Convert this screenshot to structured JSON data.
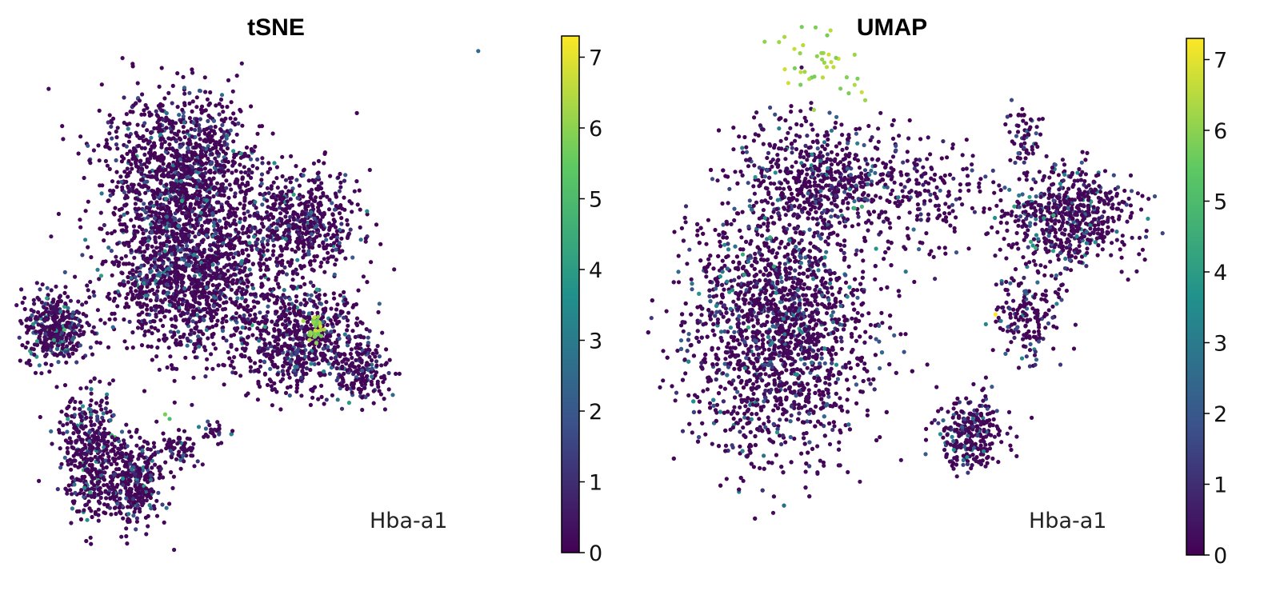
{
  "colormap": {
    "name": "viridis",
    "stops": [
      "#440154",
      "#3b528b",
      "#21918c",
      "#5ec962",
      "#fde725"
    ]
  },
  "chart_data": [
    {
      "type": "scatter",
      "title": "tSNE",
      "annotation": "Hba-a1",
      "color_variable": "Hba-a1",
      "colorbar": {
        "min": 0,
        "max": 7.3,
        "ticks": [
          0,
          1,
          2,
          3,
          4,
          5,
          6,
          7
        ],
        "cmap": "viridis"
      },
      "xlim": [
        0,
        100
      ],
      "ylim": [
        0,
        100
      ],
      "axes_visible": false,
      "grid": false,
      "clusters": [
        {
          "cx": 38,
          "cy": 76,
          "sx": 12,
          "sy": 11,
          "n": 1300,
          "expr_mean": 0.25
        },
        {
          "cx": 40,
          "cy": 55,
          "sx": 13,
          "sy": 10,
          "n": 1300,
          "expr_mean": 0.3
        },
        {
          "cx": 9,
          "cy": 45,
          "sx": 5,
          "sy": 5,
          "n": 380,
          "expr_mean": 0.6
        },
        {
          "cx": 66,
          "cy": 66,
          "sx": 9,
          "sy": 7,
          "n": 520,
          "expr_mean": 0.25
        },
        {
          "cx": 66,
          "cy": 43,
          "sx": 10,
          "sy": 7,
          "n": 650,
          "expr_mean": 0.25
        },
        {
          "cx": 80,
          "cy": 36,
          "sx": 4,
          "sy": 4,
          "n": 160,
          "expr_mean": 0.3
        },
        {
          "cx": 17,
          "cy": 20,
          "sx": 5,
          "sy": 8,
          "n": 420,
          "expr_mean": 0.5
        },
        {
          "cx": 27,
          "cy": 14,
          "sx": 5,
          "sy": 6,
          "n": 360,
          "expr_mean": 0.35
        },
        {
          "cx": 38,
          "cy": 21,
          "sx": 3,
          "sy": 2,
          "n": 60,
          "expr_mean": 0.3
        },
        {
          "cx": 46,
          "cy": 24,
          "sx": 2,
          "sy": 1.5,
          "n": 30,
          "expr_mean": 0.3
        }
      ],
      "hotspots": [
        {
          "x": 69,
          "y": 45,
          "spread": 1.2,
          "n": 28,
          "value": 6.2
        },
        {
          "x": 35,
          "y": 27,
          "spread": 0.5,
          "n": 2,
          "value": 5.5
        },
        {
          "x": 107,
          "y": 101,
          "spread": 0,
          "n": 1,
          "value": 2.5
        }
      ]
    },
    {
      "type": "scatter",
      "title": "UMAP",
      "annotation": "Hba-a1",
      "color_variable": "Hba-a1",
      "colorbar": {
        "min": 0,
        "max": 7.3,
        "ticks": [
          0,
          1,
          2,
          3,
          4,
          5,
          6,
          7
        ],
        "cmap": "viridis"
      },
      "xlim": [
        0,
        100
      ],
      "ylim": [
        0,
        100
      ],
      "axes_visible": false,
      "grid": false,
      "clusters": [
        {
          "cx": 27,
          "cy": 45,
          "sx": 11,
          "sy": 17,
          "n": 2700,
          "expr_mean": 0.35
        },
        {
          "cx": 35,
          "cy": 75,
          "sx": 9,
          "sy": 8,
          "n": 600,
          "expr_mean": 0.4
        },
        {
          "cx": 80,
          "cy": 68,
          "sx": 8,
          "sy": 6,
          "n": 600,
          "expr_mean": 0.45
        },
        {
          "cx": 73,
          "cy": 48,
          "sx": 4,
          "sy": 7,
          "n": 180,
          "expr_mean": 0.3
        },
        {
          "cx": 62,
          "cy": 24,
          "sx": 4,
          "sy": 5,
          "n": 280,
          "expr_mean": 0.4
        },
        {
          "cx": 55,
          "cy": 72,
          "sx": 7,
          "sy": 8,
          "n": 180,
          "expr_mean": 0.2
        },
        {
          "cx": 72,
          "cy": 84,
          "sx": 2,
          "sy": 4,
          "n": 60,
          "expr_mean": 0.3
        }
      ],
      "hotspots": [
        {
          "x": 35,
          "y": 97,
          "spread": 3.5,
          "n": 40,
          "value": 6.3
        },
        {
          "x": 67,
          "y": 48,
          "spread": 0.3,
          "n": 1,
          "value": 7.2
        }
      ]
    }
  ]
}
